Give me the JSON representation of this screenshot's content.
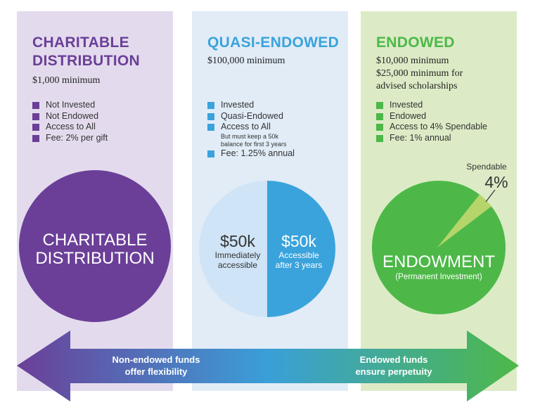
{
  "colors": {
    "purple": "#6b3f98",
    "blue": "#3aa3dc",
    "light_blue": "#cfe4f6",
    "green": "#4db848",
    "light_green": "#b5d56a",
    "dark_green": "#2e9a46"
  },
  "columns": [
    {
      "title_line1": "CHARITABLE",
      "title_line2": "DISTRIBUTION",
      "minimum": "$1,000 minimum",
      "bullets": [
        "Not Invested",
        "Not Endowed",
        "Access to All",
        "Fee: 2% per gift"
      ],
      "circle_line1": "CHARITABLE",
      "circle_line2": "DISTRIBUTION"
    },
    {
      "title": "QUASI-ENDOWED",
      "minimum": "$100,000 minimum",
      "bullets": [
        "Invested",
        "Quasi-Endowed",
        "Access to All",
        "Fee: 1.25% annual"
      ],
      "bullet_note_line1": "But must keep a 50k",
      "bullet_note_line2": "balance for first 3 years",
      "left_half": {
        "amount": "$50k",
        "line1": "Immediately",
        "line2": "accessible"
      },
      "right_half": {
        "amount": "$50k",
        "line1": "Accessible",
        "line2": "after 3 years"
      }
    },
    {
      "title": "ENDOWED",
      "minimum_line1": "$10,000 minimum",
      "minimum_line2": "$25,000 minimum for",
      "minimum_line3": "advised scholarships",
      "bullets": [
        "Invested",
        "Endowed",
        "Access to 4% Spendable",
        "Fee: 1% annual"
      ],
      "pie": {
        "spendable_label": "Spendable",
        "spendable_percent_label": "4%",
        "spendable_fraction": 0.04
      },
      "circle_line1": "ENDOWMENT",
      "circle_line2": "(Permanent Investment)"
    }
  ],
  "arrow": {
    "left_line1": "Non-endowed funds",
    "left_line2": "offer flexibility",
    "right_line1": "Endowed funds",
    "right_line2": "ensure perpetuity"
  }
}
